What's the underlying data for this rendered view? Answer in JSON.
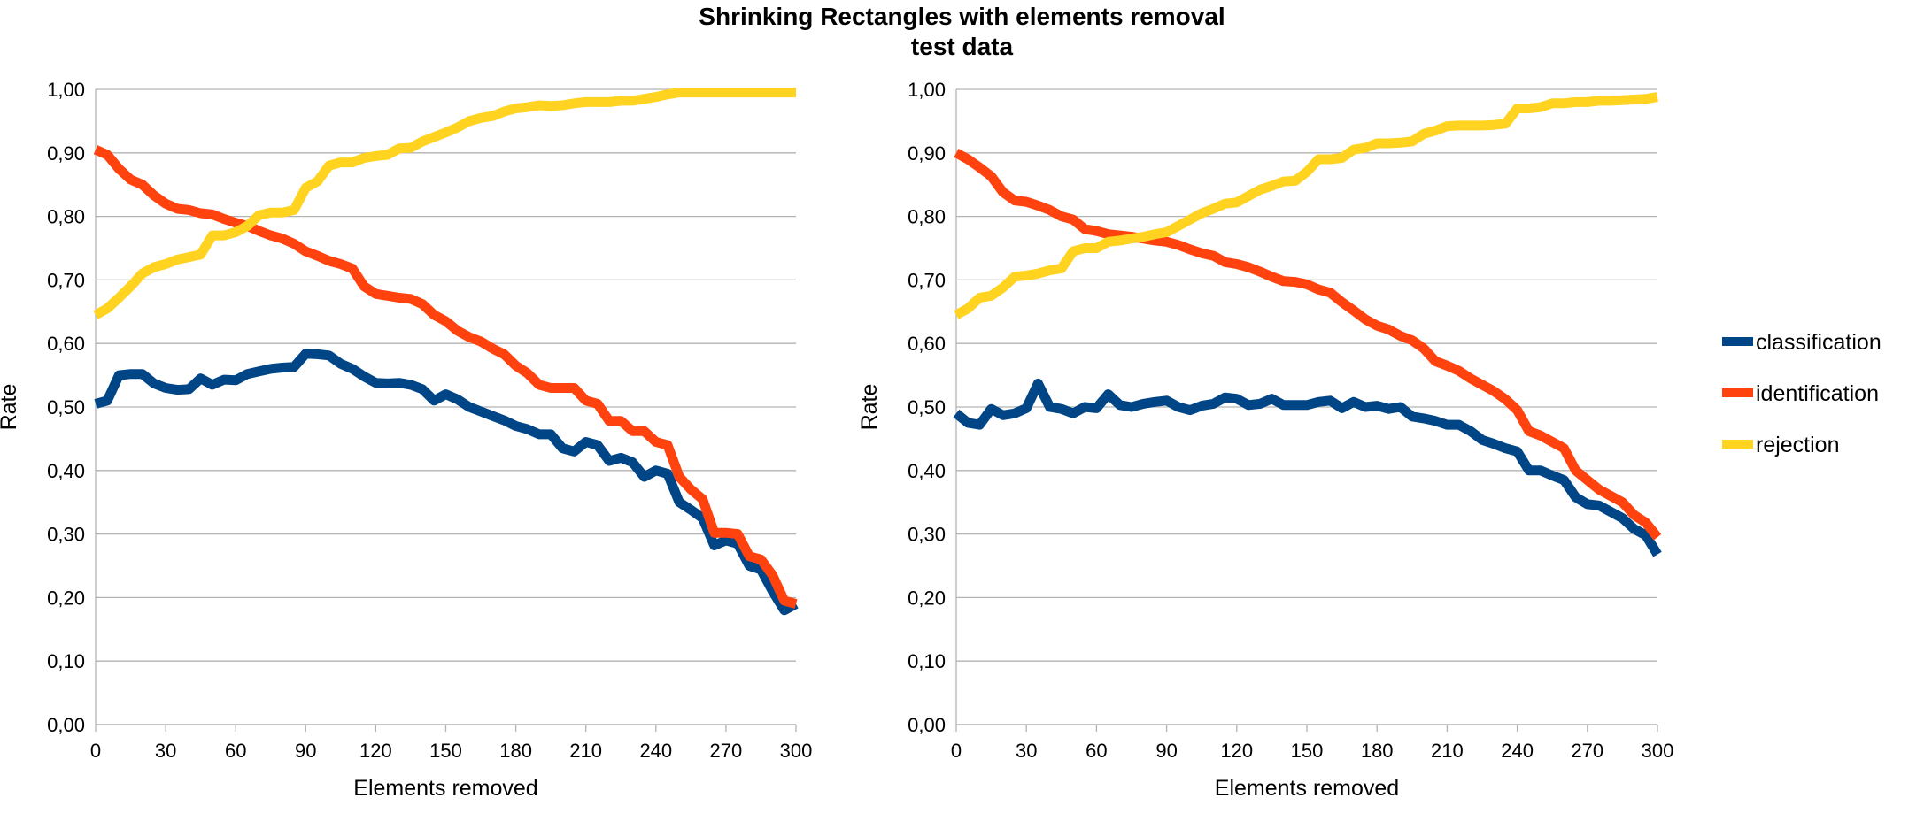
{
  "title": {
    "line1": "Shrinking Rectangles with elements removal",
    "line2": "test data"
  },
  "colors": {
    "classification": "#004586",
    "identification": "#ff420e",
    "rejection": "#ffd320",
    "grid": "#b3b3b3"
  },
  "legend": [
    {
      "key": "classification",
      "label": "classification"
    },
    {
      "key": "identification",
      "label": "identification"
    },
    {
      "key": "rejection",
      "label": "rejection"
    }
  ],
  "chart_data": [
    {
      "type": "line",
      "title": "",
      "xlabel": "Elements removed",
      "ylabel": "Rate",
      "xlim": [
        0,
        300
      ],
      "ylim": [
        0,
        1
      ],
      "x_ticks": [
        "0",
        "30",
        "60",
        "90",
        "120",
        "150",
        "180",
        "210",
        "240",
        "270",
        "300"
      ],
      "y_ticks": [
        "0,00",
        "0,10",
        "0,20",
        "0,30",
        "0,40",
        "0,50",
        "0,60",
        "0,70",
        "0,80",
        "0,90",
        "1,00"
      ],
      "grid": true,
      "legend_position": "right",
      "x": [
        0,
        5,
        10,
        15,
        20,
        25,
        30,
        35,
        40,
        45,
        50,
        55,
        60,
        65,
        70,
        75,
        80,
        85,
        90,
        95,
        100,
        105,
        110,
        115,
        120,
        125,
        130,
        135,
        140,
        145,
        150,
        155,
        160,
        165,
        170,
        175,
        180,
        185,
        190,
        195,
        200,
        205,
        210,
        215,
        220,
        225,
        230,
        235,
        240,
        245,
        250,
        255,
        260,
        265,
        270,
        275,
        280,
        285,
        290,
        295,
        300
      ],
      "series": [
        {
          "name": "classification",
          "key": "classification",
          "values": [
            0.505,
            0.51,
            0.55,
            0.552,
            0.552,
            0.537,
            0.53,
            0.527,
            0.528,
            0.545,
            0.535,
            0.543,
            0.542,
            0.552,
            0.556,
            0.56,
            0.562,
            0.563,
            0.584,
            0.583,
            0.581,
            0.568,
            0.56,
            0.548,
            0.538,
            0.537,
            0.538,
            0.535,
            0.528,
            0.51,
            0.52,
            0.512,
            0.5,
            0.493,
            0.486,
            0.479,
            0.47,
            0.465,
            0.457,
            0.457,
            0.435,
            0.43,
            0.445,
            0.44,
            0.415,
            0.42,
            0.413,
            0.39,
            0.4,
            0.395,
            0.35,
            0.338,
            0.325,
            0.282,
            0.29,
            0.285,
            0.25,
            0.244,
            0.21,
            0.18,
            0.19
          ]
        },
        {
          "name": "identification",
          "key": "identification",
          "values": [
            0.905,
            0.897,
            0.875,
            0.858,
            0.85,
            0.833,
            0.82,
            0.812,
            0.81,
            0.805,
            0.803,
            0.796,
            0.79,
            0.785,
            0.777,
            0.77,
            0.765,
            0.757,
            0.745,
            0.738,
            0.73,
            0.725,
            0.718,
            0.69,
            0.678,
            0.675,
            0.672,
            0.67,
            0.662,
            0.645,
            0.635,
            0.62,
            0.61,
            0.603,
            0.592,
            0.583,
            0.565,
            0.553,
            0.535,
            0.53,
            0.53,
            0.53,
            0.51,
            0.505,
            0.478,
            0.478,
            0.462,
            0.462,
            0.445,
            0.44,
            0.39,
            0.37,
            0.355,
            0.302,
            0.302,
            0.3,
            0.265,
            0.26,
            0.235,
            0.195,
            0.19
          ]
        },
        {
          "name": "rejection",
          "key": "rejection",
          "values": [
            0.645,
            0.655,
            0.672,
            0.69,
            0.71,
            0.72,
            0.725,
            0.732,
            0.736,
            0.74,
            0.77,
            0.77,
            0.775,
            0.785,
            0.802,
            0.806,
            0.806,
            0.81,
            0.845,
            0.855,
            0.88,
            0.885,
            0.885,
            0.892,
            0.895,
            0.897,
            0.907,
            0.908,
            0.918,
            0.925,
            0.932,
            0.94,
            0.95,
            0.955,
            0.958,
            0.965,
            0.97,
            0.972,
            0.975,
            0.974,
            0.975,
            0.978,
            0.98,
            0.98,
            0.98,
            0.982,
            0.982,
            0.985,
            0.988,
            0.992,
            0.995,
            0.995,
            0.995,
            0.995,
            0.995,
            0.995,
            0.995,
            0.995,
            0.995,
            0.995,
            0.995
          ]
        }
      ]
    },
    {
      "type": "line",
      "title": "",
      "xlabel": "Elements removed",
      "ylabel": "Rate",
      "xlim": [
        0,
        300
      ],
      "ylim": [
        0,
        1
      ],
      "x_ticks": [
        "0",
        "30",
        "60",
        "90",
        "120",
        "150",
        "180",
        "210",
        "240",
        "270",
        "300"
      ],
      "y_ticks": [
        "0,00",
        "0,10",
        "0,20",
        "0,30",
        "0,40",
        "0,50",
        "0,60",
        "0,70",
        "0,80",
        "0,90",
        "1,00"
      ],
      "grid": true,
      "legend_position": "right",
      "x": [
        0,
        5,
        10,
        15,
        20,
        25,
        30,
        35,
        40,
        45,
        50,
        55,
        60,
        65,
        70,
        75,
        80,
        85,
        90,
        95,
        100,
        105,
        110,
        115,
        120,
        125,
        130,
        135,
        140,
        145,
        150,
        155,
        160,
        165,
        170,
        175,
        180,
        185,
        190,
        195,
        200,
        205,
        210,
        215,
        220,
        225,
        230,
        235,
        240,
        245,
        250,
        255,
        260,
        265,
        270,
        275,
        280,
        285,
        290,
        295,
        300
      ],
      "series": [
        {
          "name": "classification",
          "key": "classification",
          "values": [
            0.49,
            0.475,
            0.472,
            0.497,
            0.487,
            0.49,
            0.498,
            0.537,
            0.5,
            0.497,
            0.49,
            0.5,
            0.498,
            0.52,
            0.503,
            0.5,
            0.505,
            0.508,
            0.51,
            0.5,
            0.495,
            0.502,
            0.505,
            0.515,
            0.513,
            0.503,
            0.505,
            0.513,
            0.503,
            0.503,
            0.503,
            0.508,
            0.51,
            0.498,
            0.508,
            0.5,
            0.502,
            0.497,
            0.5,
            0.485,
            0.482,
            0.478,
            0.472,
            0.472,
            0.462,
            0.448,
            0.442,
            0.435,
            0.43,
            0.4,
            0.4,
            0.392,
            0.385,
            0.358,
            0.347,
            0.345,
            0.335,
            0.325,
            0.308,
            0.298,
            0.268
          ]
        },
        {
          "name": "identification",
          "key": "identification",
          "values": [
            0.9,
            0.89,
            0.877,
            0.863,
            0.838,
            0.825,
            0.823,
            0.817,
            0.81,
            0.8,
            0.795,
            0.78,
            0.777,
            0.772,
            0.77,
            0.768,
            0.765,
            0.762,
            0.76,
            0.755,
            0.748,
            0.742,
            0.738,
            0.728,
            0.725,
            0.72,
            0.713,
            0.705,
            0.698,
            0.697,
            0.693,
            0.685,
            0.68,
            0.665,
            0.652,
            0.638,
            0.628,
            0.622,
            0.612,
            0.605,
            0.592,
            0.572,
            0.565,
            0.557,
            0.545,
            0.535,
            0.525,
            0.512,
            0.495,
            0.462,
            0.455,
            0.445,
            0.435,
            0.4,
            0.385,
            0.37,
            0.36,
            0.35,
            0.33,
            0.318,
            0.295
          ]
        },
        {
          "name": "rejection",
          "key": "rejection",
          "values": [
            0.645,
            0.655,
            0.672,
            0.675,
            0.688,
            0.705,
            0.707,
            0.71,
            0.715,
            0.718,
            0.745,
            0.75,
            0.75,
            0.76,
            0.762,
            0.765,
            0.768,
            0.772,
            0.775,
            0.785,
            0.795,
            0.805,
            0.812,
            0.82,
            0.822,
            0.832,
            0.842,
            0.848,
            0.855,
            0.856,
            0.87,
            0.89,
            0.89,
            0.892,
            0.905,
            0.908,
            0.915,
            0.915,
            0.916,
            0.918,
            0.93,
            0.935,
            0.942,
            0.943,
            0.943,
            0.943,
            0.944,
            0.946,
            0.97,
            0.97,
            0.972,
            0.978,
            0.978,
            0.98,
            0.98,
            0.982,
            0.982,
            0.983,
            0.984,
            0.985,
            0.988
          ]
        }
      ]
    }
  ]
}
